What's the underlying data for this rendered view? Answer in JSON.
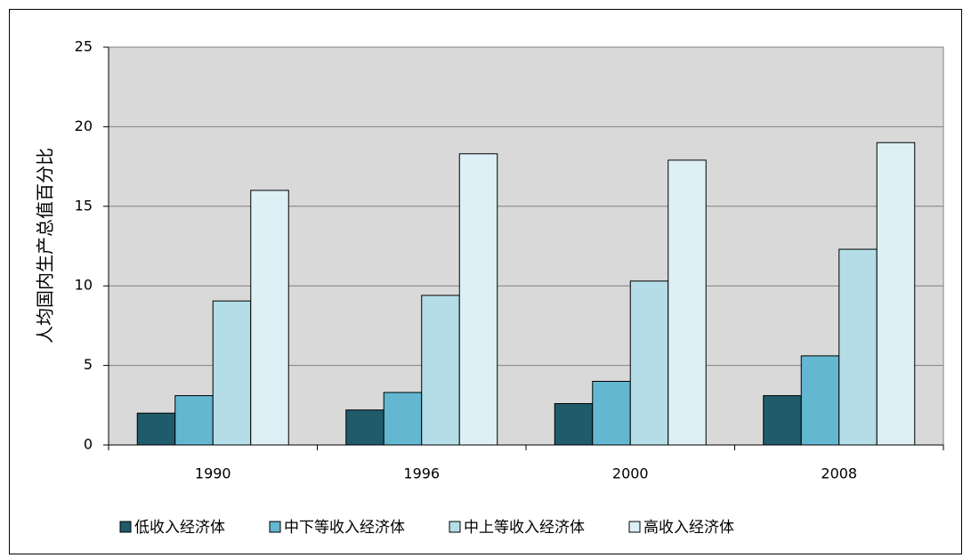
{
  "chart_data": {
    "type": "bar",
    "ylabel": "人均国内生产总值百分比",
    "categories": [
      "1990",
      "1996",
      "2000",
      "2008"
    ],
    "series": [
      {
        "name": "低收入经济体",
        "color": "#1f5b6b",
        "values": [
          2.0,
          2.2,
          2.6,
          3.1
        ]
      },
      {
        "name": "中下等收入经济体",
        "color": "#63b7d1",
        "values": [
          3.1,
          3.3,
          4.0,
          5.6
        ]
      },
      {
        "name": "中上等收入经济体",
        "color": "#b4dde7",
        "values": [
          9.05,
          9.4,
          10.3,
          12.3
        ]
      },
      {
        "name": "高收入经济体",
        "color": "#dcf0f6",
        "values": [
          16.0,
          18.3,
          17.9,
          19.0
        ]
      }
    ],
    "ylim": [
      0,
      25
    ],
    "yticks": [
      0,
      5,
      10,
      15,
      20,
      25
    ],
    "grid": true,
    "legend": "bottom"
  }
}
